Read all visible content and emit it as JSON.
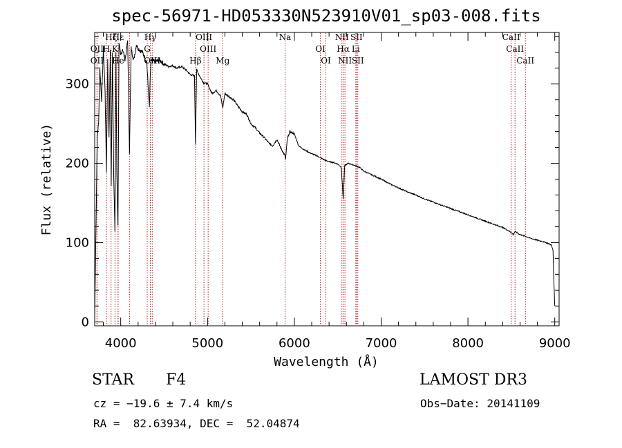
{
  "chart_data": {
    "type": "line",
    "title": "spec-56971-HD053330N523910V01_sp03-008.fits",
    "xlabel": "Wavelength (Å)",
    "ylabel": "Flux (relative)",
    "xlim": [
      3700,
      9050
    ],
    "ylim": [
      -5,
      365
    ],
    "xticks": [
      4000,
      5000,
      6000,
      7000,
      8000,
      9000
    ],
    "yticks": [
      0,
      100,
      200,
      300
    ],
    "series": [
      {
        "name": "spectrum",
        "x": [
          3700,
          3715,
          3730,
          3745,
          3760,
          3780,
          3800,
          3820,
          3835,
          3850,
          3865,
          3880,
          3890,
          3905,
          3920,
          3933,
          3945,
          3955,
          3968,
          3980,
          4000,
          4020,
          4050,
          4080,
          4101,
          4120,
          4150,
          4180,
          4200,
          4250,
          4300,
          4330,
          4340,
          4350,
          4400,
          4450,
          4500,
          4550,
          4600,
          4650,
          4700,
          4750,
          4800,
          4850,
          4861,
          4875,
          4900,
          4950,
          5000,
          5050,
          5100,
          5150,
          5175,
          5200,
          5250,
          5300,
          5350,
          5400,
          5450,
          5500,
          5550,
          5600,
          5650,
          5700,
          5750,
          5800,
          5850,
          5890,
          5900,
          5920,
          5950,
          6000,
          6050,
          6100,
          6150,
          6200,
          6250,
          6300,
          6350,
          6400,
          6450,
          6500,
          6540,
          6563,
          6580,
          6620,
          6680,
          6750,
          6800,
          6900,
          7000,
          7100,
          7200,
          7300,
          7400,
          7500,
          7600,
          7700,
          7800,
          7900,
          8000,
          8100,
          8200,
          8300,
          8400,
          8498,
          8520,
          8542,
          8600,
          8662,
          8700,
          8800,
          8900,
          8960,
          8980,
          8990,
          9000
        ],
        "values": [
          5,
          120,
          235,
          250,
          320,
          280,
          345,
          290,
          190,
          330,
          230,
          345,
          170,
          340,
          180,
          115,
          340,
          190,
          120,
          350,
          335,
          345,
          330,
          355,
          215,
          345,
          330,
          350,
          345,
          340,
          328,
          270,
          310,
          330,
          328,
          330,
          325,
          322,
          323,
          320,
          322,
          318,
          312,
          310,
          225,
          318,
          312,
          302,
          300,
          288,
          292,
          285,
          270,
          288,
          284,
          280,
          272,
          265,
          262,
          250,
          245,
          238,
          233,
          226,
          222,
          230,
          218,
          210,
          205,
          232,
          240,
          237,
          222,
          218,
          215,
          212,
          210,
          207,
          204,
          202,
          201,
          199,
          195,
          155,
          197,
          200,
          198,
          195,
          190,
          185,
          180,
          174,
          169,
          164,
          160,
          155,
          151,
          147,
          143,
          139,
          135,
          131,
          127,
          123,
          119,
          113,
          110,
          114,
          110,
          108,
          106,
          103,
          100,
          97,
          90,
          50,
          20
        ]
      }
    ],
    "line_markers": [
      {
        "name": "Hδ",
        "x": 4101,
        "label": ""
      },
      {
        "name": "CaII K",
        "x": 3934,
        "label": "K"
      },
      {
        "name": "CaII H",
        "x": 3969,
        "label": "He"
      },
      {
        "name": "Hζ",
        "x": 3889,
        "label": "Hζ"
      },
      {
        "name": "OII",
        "x": 3727,
        "label": "OII"
      },
      {
        "name": "OII b",
        "x": 3727,
        "label": "OII"
      },
      {
        "name": "Hε",
        "x": 3970,
        "label": "Hε"
      },
      {
        "name": "Hη",
        "x": 3835,
        "label": "H"
      },
      {
        "name": "OIII 4363",
        "x": 4363,
        "label": "OIII"
      },
      {
        "name": "Hγ",
        "x": 4341,
        "label": "Hγ"
      },
      {
        "name": "G",
        "x": 4305,
        "label": "G"
      },
      {
        "name": "Hβ",
        "x": 4861,
        "label": "Hβ"
      },
      {
        "name": "OIII 4959",
        "x": 4959,
        "label": "OIII"
      },
      {
        "name": "OIII 5007",
        "x": 5007,
        "label": "OIII"
      },
      {
        "name": "Mg",
        "x": 5175,
        "label": "Mg"
      },
      {
        "name": "Na",
        "x": 5893,
        "label": "Na"
      },
      {
        "name": "OI 6300",
        "x": 6300,
        "label": "OI"
      },
      {
        "name": "OI 6363",
        "x": 6363,
        "label": "OI"
      },
      {
        "name": "NII 6548",
        "x": 6548,
        "label": "NII"
      },
      {
        "name": "Hα",
        "x": 6563,
        "label": "Hα"
      },
      {
        "name": "NII 6583",
        "x": 6583,
        "label": "NII"
      },
      {
        "name": "SII 6716",
        "x": 6716,
        "label": "SII"
      },
      {
        "name": "Li",
        "x": 6708,
        "label": "Li"
      },
      {
        "name": "SII 6731",
        "x": 6731,
        "label": "SII"
      },
      {
        "name": "CaII 8498",
        "x": 8498,
        "label": "CaII"
      },
      {
        "name": "CaII 8542",
        "x": 8542,
        "label": "CaII"
      },
      {
        "name": "CaII 8662",
        "x": 8662,
        "label": "CaII"
      }
    ]
  },
  "info": {
    "object_class": "STAR",
    "subclass": "F4",
    "survey": "LAMOST DR3",
    "cz": "cz = −19.6 ± 7.4 km/s",
    "obs_date": "Obs−Date: 20141109",
    "radec": "RA =  82.63934, DEC =  52.04874"
  },
  "colors": {
    "line_marker": "#b22222",
    "spectrum": "#000000",
    "axis": "#000000"
  }
}
